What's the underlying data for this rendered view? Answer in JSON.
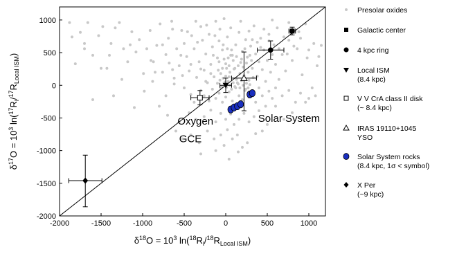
{
  "chart_data": {
    "type": "scatter",
    "xlabel_parts": [
      "δ",
      "18",
      "O = 10",
      "3",
      " ln(",
      "18",
      "R",
      "i",
      "/",
      "18",
      "R",
      "Local ISM",
      ")"
    ],
    "ylabel_parts": [
      "δ",
      "17",
      "O = 10",
      "3",
      " ln(",
      "17",
      "R",
      "i",
      "/",
      "17",
      "R",
      "Local ISM",
      ")"
    ],
    "xlim": [
      -2000,
      1200
    ],
    "ylim": [
      -2000,
      1200
    ],
    "x_ticks": [
      "-2000",
      "-1500",
      "-1000",
      "-500",
      "0",
      "500",
      "1000"
    ],
    "x_tick_values": [
      -2000,
      -1500,
      -1000,
      -500,
      0,
      500,
      1000
    ],
    "y_ticks": [
      "1000",
      "500",
      "0",
      "-500",
      "-1000",
      "-1500",
      "-2000"
    ],
    "y_tick_values": [
      1000,
      500,
      0,
      -500,
      -1000,
      -1500,
      -2000
    ],
    "annotations": [
      {
        "text": "Oxygen",
        "x": -580,
        "y": -600
      },
      {
        "text": "GCE",
        "x": -560,
        "y": -870
      },
      {
        "text": "Solar System",
        "x": 390,
        "y": -560
      }
    ],
    "gce_line": {
      "x": [
        -2000,
        1200
      ],
      "y": [
        -2000,
        1200
      ]
    },
    "presolar_oxides": {
      "name": "Presolar oxides",
      "color": "#c8c8c8",
      "points": [
        [
          -1880,
          960
        ],
        [
          -1850,
          740
        ],
        [
          -1810,
          330
        ],
        [
          -1750,
          810
        ],
        [
          -1700,
          560
        ],
        [
          -1660,
          960
        ],
        [
          -1600,
          460
        ],
        [
          -1530,
          760
        ],
        [
          -1480,
          900
        ],
        [
          -1430,
          260
        ],
        [
          -1380,
          640
        ],
        [
          -1330,
          880
        ],
        [
          -1280,
          960
        ],
        [
          -1230,
          560
        ],
        [
          -1180,
          360
        ],
        [
          -1130,
          820
        ],
        [
          -1080,
          510
        ],
        [
          -1040,
          700
        ],
        [
          -990,
          180
        ],
        [
          -950,
          560
        ],
        [
          -910,
          840
        ],
        [
          -870,
          360
        ],
        [
          -830,
          610
        ],
        [
          -790,
          940
        ],
        [
          -760,
          200
        ],
        [
          -720,
          470
        ],
        [
          -690,
          720
        ],
        [
          -650,
          980
        ],
        [
          -620,
          110
        ],
        [
          -590,
          560
        ],
        [
          -560,
          300
        ],
        [
          -530,
          840
        ],
        [
          -500,
          640
        ],
        [
          -470,
          440
        ],
        [
          -440,
          220
        ],
        [
          -410,
          760
        ],
        [
          -380,
          560
        ],
        [
          -350,
          120
        ],
        [
          -320,
          360
        ],
        [
          -300,
          900
        ],
        [
          -280,
          690
        ],
        [
          -260,
          230
        ],
        [
          -240,
          480
        ],
        [
          -220,
          40
        ],
        [
          -200,
          780
        ],
        [
          -180,
          320
        ],
        [
          -160,
          590
        ],
        [
          -140,
          130
        ],
        [
          -120,
          980
        ],
        [
          -100,
          420
        ],
        [
          -90,
          230
        ],
        [
          -80,
          680
        ],
        [
          -60,
          -40
        ],
        [
          -40,
          540
        ],
        [
          -20,
          1020
        ],
        [
          0,
          330
        ],
        [
          20,
          740
        ],
        [
          40,
          130
        ],
        [
          60,
          880
        ],
        [
          80,
          460
        ],
        [
          100,
          250
        ],
        [
          120,
          620
        ],
        [
          140,
          40
        ],
        [
          160,
          810
        ],
        [
          180,
          350
        ],
        [
          200,
          520
        ],
        [
          220,
          150
        ],
        [
          240,
          700
        ],
        [
          260,
          430
        ],
        [
          280,
          80
        ],
        [
          300,
          600
        ],
        [
          320,
          260
        ],
        [
          340,
          910
        ],
        [
          360,
          480
        ],
        [
          380,
          140
        ],
        [
          400,
          360
        ],
        [
          420,
          720
        ],
        [
          440,
          240
        ],
        [
          460,
          540
        ],
        [
          480,
          60
        ],
        [
          500,
          380
        ],
        [
          520,
          780
        ],
        [
          540,
          200
        ],
        [
          560,
          470
        ],
        [
          580,
          620
        ],
        [
          600,
          320
        ],
        [
          640,
          90
        ],
        [
          680,
          470
        ],
        [
          720,
          220
        ],
        [
          760,
          690
        ],
        [
          800,
          380
        ],
        [
          860,
          560
        ],
        [
          920,
          160
        ],
        [
          980,
          420
        ],
        [
          1040,
          -40
        ],
        [
          1100,
          300
        ],
        [
          1150,
          610
        ],
        [
          -1500,
          260
        ],
        [
          -1250,
          90
        ],
        [
          -980,
          -90
        ],
        [
          -880,
          60
        ],
        [
          -720,
          -160
        ],
        [
          -620,
          20
        ],
        [
          -500,
          -40
        ],
        [
          -420,
          -140
        ],
        [
          -380,
          -260
        ],
        [
          -300,
          -80
        ],
        [
          -260,
          -160
        ],
        [
          -200,
          -240
        ],
        [
          -160,
          -60
        ],
        [
          -120,
          -200
        ],
        [
          -80,
          -120
        ],
        [
          -40,
          -260
        ],
        [
          0,
          -180
        ],
        [
          40,
          -100
        ],
        [
          80,
          -240
        ],
        [
          120,
          -40
        ],
        [
          160,
          -160
        ],
        [
          200,
          -220
        ],
        [
          240,
          -60
        ],
        [
          280,
          -180
        ],
        [
          320,
          -100
        ],
        [
          360,
          -260
        ],
        [
          400,
          -40
        ],
        [
          440,
          -160
        ],
        [
          480,
          -320
        ],
        [
          520,
          -90
        ],
        [
          560,
          -200
        ],
        [
          600,
          -40
        ],
        [
          680,
          -160
        ],
        [
          760,
          -80
        ],
        [
          840,
          -260
        ],
        [
          900,
          -120
        ],
        [
          1000,
          -200
        ],
        [
          -440,
          -420
        ],
        [
          -360,
          -520
        ],
        [
          -260,
          -480
        ],
        [
          -180,
          -380
        ],
        [
          -120,
          -560
        ],
        [
          -60,
          -430
        ],
        [
          0,
          -520
        ],
        [
          60,
          -440
        ],
        [
          100,
          -600
        ],
        [
          160,
          -520
        ],
        [
          220,
          -430
        ],
        [
          280,
          -560
        ],
        [
          340,
          -480
        ],
        [
          400,
          -390
        ],
        [
          -600,
          -700
        ],
        [
          -520,
          -820
        ],
        [
          -420,
          -760
        ],
        [
          -320,
          -880
        ],
        [
          -220,
          -700
        ],
        [
          -140,
          -820
        ],
        [
          -60,
          -760
        ],
        [
          20,
          -680
        ],
        [
          80,
          -820
        ],
        [
          140,
          -760
        ],
        [
          -300,
          -1050
        ],
        [
          -120,
          -1000
        ],
        [
          150,
          -1020
        ],
        [
          40,
          -1130
        ],
        [
          -20,
          -920
        ],
        [
          -40,
          260
        ],
        [
          -20,
          400
        ],
        [
          0,
          140
        ],
        [
          20,
          560
        ],
        [
          40,
          300
        ],
        [
          60,
          460
        ],
        [
          -80,
          360
        ],
        [
          -60,
          180
        ],
        [
          -30,
          620
        ],
        [
          10,
          260
        ],
        [
          30,
          420
        ],
        [
          50,
          200
        ],
        [
          70,
          540
        ],
        [
          90,
          380
        ],
        [
          110,
          260
        ],
        [
          130,
          440
        ],
        [
          150,
          300
        ],
        [
          170,
          180
        ],
        [
          190,
          400
        ],
        [
          210,
          280
        ],
        [
          230,
          560
        ],
        [
          250,
          340
        ],
        [
          270,
          200
        ],
        [
          290,
          460
        ],
        [
          310,
          380
        ],
        [
          330,
          120
        ],
        [
          -100,
          30
        ],
        [
          -70,
          80
        ],
        [
          -50,
          -20
        ],
        [
          -30,
          110
        ],
        [
          -10,
          50
        ],
        [
          10,
          -30
        ],
        [
          30,
          60
        ],
        [
          50,
          0
        ],
        [
          70,
          -60
        ],
        [
          90,
          40
        ],
        [
          110,
          -20
        ],
        [
          130,
          90
        ],
        [
          150,
          20
        ],
        [
          170,
          -40
        ],
        [
          190,
          70
        ],
        [
          210,
          0
        ],
        [
          230,
          -80
        ],
        [
          250,
          30
        ],
        [
          270,
          -40
        ],
        [
          290,
          10
        ],
        [
          -1700,
          640
        ],
        [
          -1400,
          460
        ],
        [
          -1150,
          620
        ],
        [
          -850,
          200
        ],
        [
          -680,
          340
        ],
        [
          -460,
          820
        ],
        [
          -340,
          660
        ],
        [
          -230,
          920
        ],
        [
          -130,
          760
        ],
        [
          -70,
          860
        ],
        [
          180,
          980
        ],
        [
          280,
          830
        ],
        [
          380,
          660
        ],
        [
          460,
          860
        ],
        [
          620,
          880
        ],
        [
          700,
          740
        ],
        [
          880,
          820
        ],
        [
          1060,
          640
        ],
        [
          -1600,
          -220
        ],
        [
          -1350,
          -160
        ],
        [
          -1100,
          -340
        ],
        [
          -800,
          -320
        ],
        [
          -560,
          -560
        ],
        [
          -700,
          -460
        ],
        [
          600,
          -320
        ],
        [
          700,
          -520
        ],
        [
          800,
          -420
        ],
        [
          960,
          -260
        ],
        [
          1080,
          -160
        ],
        [
          500,
          -600
        ],
        [
          440,
          -700
        ],
        [
          360,
          -740
        ],
        [
          260,
          -880
        ],
        [
          200,
          -950
        ],
        [
          -900,
          380
        ],
        [
          -760,
          620
        ],
        [
          -640,
          860
        ],
        [
          -540,
          460
        ],
        [
          -360,
          980
        ],
        [
          -150,
          460
        ],
        [
          -240,
          60
        ],
        [
          -300,
          250
        ],
        [
          -180,
          180
        ],
        [
          -420,
          320
        ],
        [
          -520,
          150
        ],
        [
          -640,
          240
        ],
        [
          320,
          700
        ],
        [
          420,
          580
        ],
        [
          520,
          680
        ],
        [
          640,
          560
        ],
        [
          740,
          480
        ],
        [
          820,
          600
        ],
        [
          900,
          720
        ],
        [
          1000,
          540
        ],
        [
          1120,
          440
        ],
        [
          960,
          940
        ],
        [
          760,
          960
        ],
        [
          560,
          1000
        ]
      ]
    },
    "galactic_center": {
      "name": "Galactic center",
      "x": 800,
      "y": 830,
      "yerr": 60,
      "xerr": 40
    },
    "ring_4kpc": {
      "name": "4 kpc ring",
      "x": 540,
      "y": 540,
      "xerr": 160,
      "yerr": 140
    },
    "local_ism": {
      "name": "Local ISM",
      "sub": "(8.4 kpc)",
      "x": 0,
      "y": 0,
      "xerr": 70,
      "yerr": 110
    },
    "vvcra": {
      "name": "V V CrA  class II disk",
      "sub": "(~ 8.4 kpc)",
      "x": -310,
      "y": -190,
      "xerr": 110,
      "yerr": 110
    },
    "iras": {
      "name": "IRAS 19110+1045",
      "sub": "YSO",
      "x": 220,
      "y": 110,
      "xerr": 150,
      "yerr_lo": 500,
      "yerr_hi": 400
    },
    "solar_system_rocks": {
      "name": "Solar System rocks",
      "sub": "(8.4 kpc, 1σ < symbol)",
      "color": "#1a2fbf",
      "points": [
        [
          60,
          -370
        ],
        [
          100,
          -340
        ],
        [
          140,
          -320
        ],
        [
          180,
          -290
        ],
        [
          290,
          -140
        ],
        [
          320,
          -120
        ]
      ]
    },
    "x_per": {
      "name": "X Per",
      "sub": "(~9 kpc)",
      "x": -1690,
      "y": -1460,
      "xerr": 200,
      "yerr_lo": 400,
      "yerr_hi": 390
    }
  }
}
